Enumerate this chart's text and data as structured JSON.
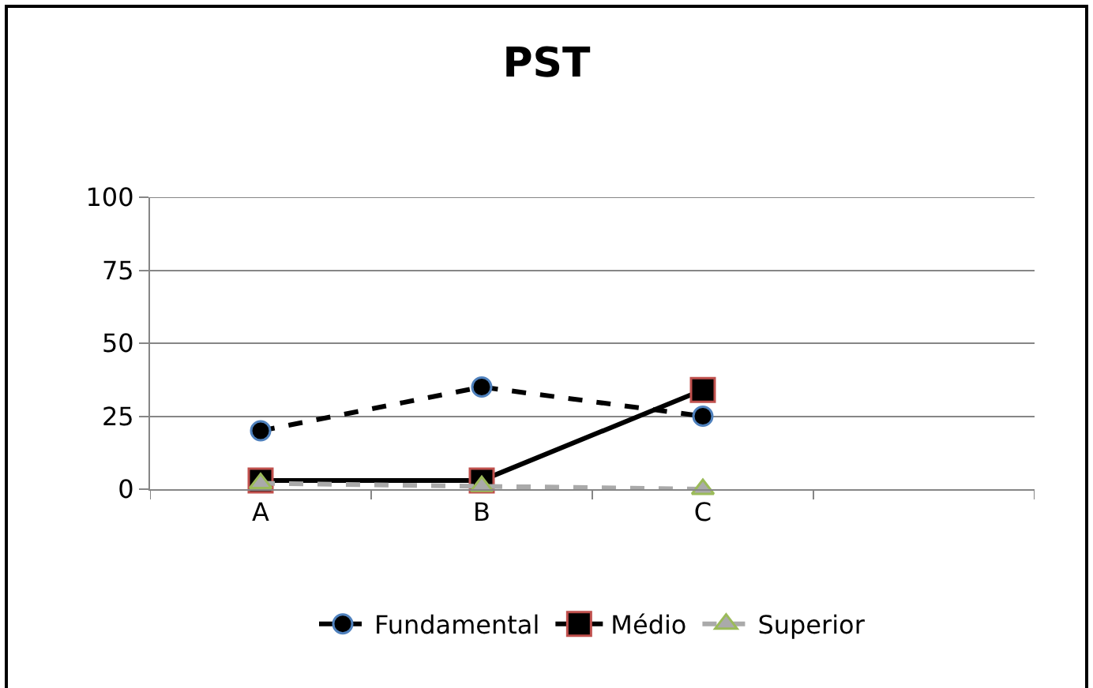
{
  "chart_data": {
    "type": "line",
    "title": "PST",
    "categories": [
      "A",
      "B",
      "C",
      null
    ],
    "series": [
      {
        "name": "Fundamental",
        "color": "#000000",
        "values": [
          20,
          35,
          25,
          null
        ],
        "marker": "circle",
        "line_style": "dashed"
      },
      {
        "name": "Médio",
        "color": "#000000",
        "values": [
          3,
          3,
          34,
          null
        ],
        "marker": "square",
        "line_style": "solid"
      },
      {
        "name": "Superior",
        "color": "#aaaaaa",
        "values": [
          2,
          1,
          0,
          null
        ],
        "marker": "triangle",
        "line_style": "dashed"
      }
    ],
    "ylim": [
      0,
      100
    ],
    "yticks": [
      0,
      25,
      50,
      75,
      100
    ],
    "grid": "y",
    "legend": "bottom"
  }
}
